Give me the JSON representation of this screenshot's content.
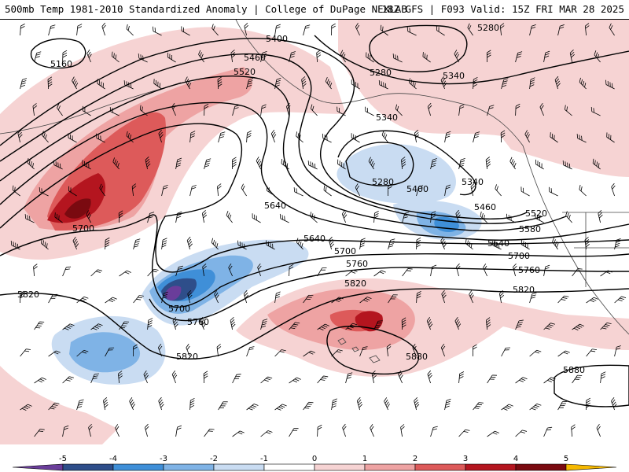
{
  "header": {
    "left_title": "500mb Temp 1981-2010 Standardized Anomaly | College of DuPage NEXLAB",
    "right_title": "18Z GFS | F093 Valid: 15Z FRI MAR 28 2025"
  },
  "colors": {
    "neg5": "#6a3d9a",
    "neg4": "#2e4e8a",
    "neg3": "#3f8fd8",
    "neg2": "#7fb3e6",
    "neg1": "#c9dcf2",
    "zero": "#ffffff",
    "pos1": "#f6d3d3",
    "pos2": "#eea3a3",
    "pos3": "#dd5a5a",
    "pos4": "#b4151f",
    "pos5": "#7a0a10",
    "top": "#f5b800",
    "contour": "#000000"
  },
  "contour_labels": [
    {
      "key": "c5160a",
      "text": "5160"
    },
    {
      "key": "c5400a",
      "text": "5400"
    },
    {
      "key": "c5460a",
      "text": "5460"
    },
    {
      "key": "c5520a",
      "text": "5520"
    },
    {
      "key": "c5280a",
      "text": "5280"
    },
    {
      "key": "c5280b",
      "text": "5280"
    },
    {
      "key": "c5340a",
      "text": "5340"
    },
    {
      "key": "c5340b",
      "text": "5340"
    },
    {
      "key": "c5280c",
      "text": "5280"
    },
    {
      "key": "c5400b",
      "text": "5400"
    },
    {
      "key": "c5340c",
      "text": "5340"
    },
    {
      "key": "c5460b",
      "text": "5460"
    },
    {
      "key": "c5520b",
      "text": "5520"
    },
    {
      "key": "c5580a",
      "text": "5580"
    },
    {
      "key": "c5640a",
      "text": "5640"
    },
    {
      "key": "c5640b",
      "text": "5640"
    },
    {
      "key": "c5640c",
      "text": "5640"
    },
    {
      "key": "c5700a",
      "text": "5700"
    },
    {
      "key": "c5700b",
      "text": "5700"
    },
    {
      "key": "c5700c",
      "text": "5700"
    },
    {
      "key": "c5700d",
      "text": "5700"
    },
    {
      "key": "c5760a",
      "text": "5760"
    },
    {
      "key": "c5760b",
      "text": "5760"
    },
    {
      "key": "c5760c",
      "text": "5760"
    },
    {
      "key": "c5820a",
      "text": "5820"
    },
    {
      "key": "c5820b",
      "text": "5820"
    },
    {
      "key": "c5820c",
      "text": "5820"
    },
    {
      "key": "c5820d",
      "text": "5820"
    },
    {
      "key": "c5880a",
      "text": "5880"
    },
    {
      "key": "c5880b",
      "text": "5880"
    }
  ],
  "legend": {
    "ticks": [
      "-5",
      "-4",
      "-3",
      "-2",
      "-1",
      "0",
      "1",
      "2",
      "3",
      "4",
      "5"
    ]
  }
}
